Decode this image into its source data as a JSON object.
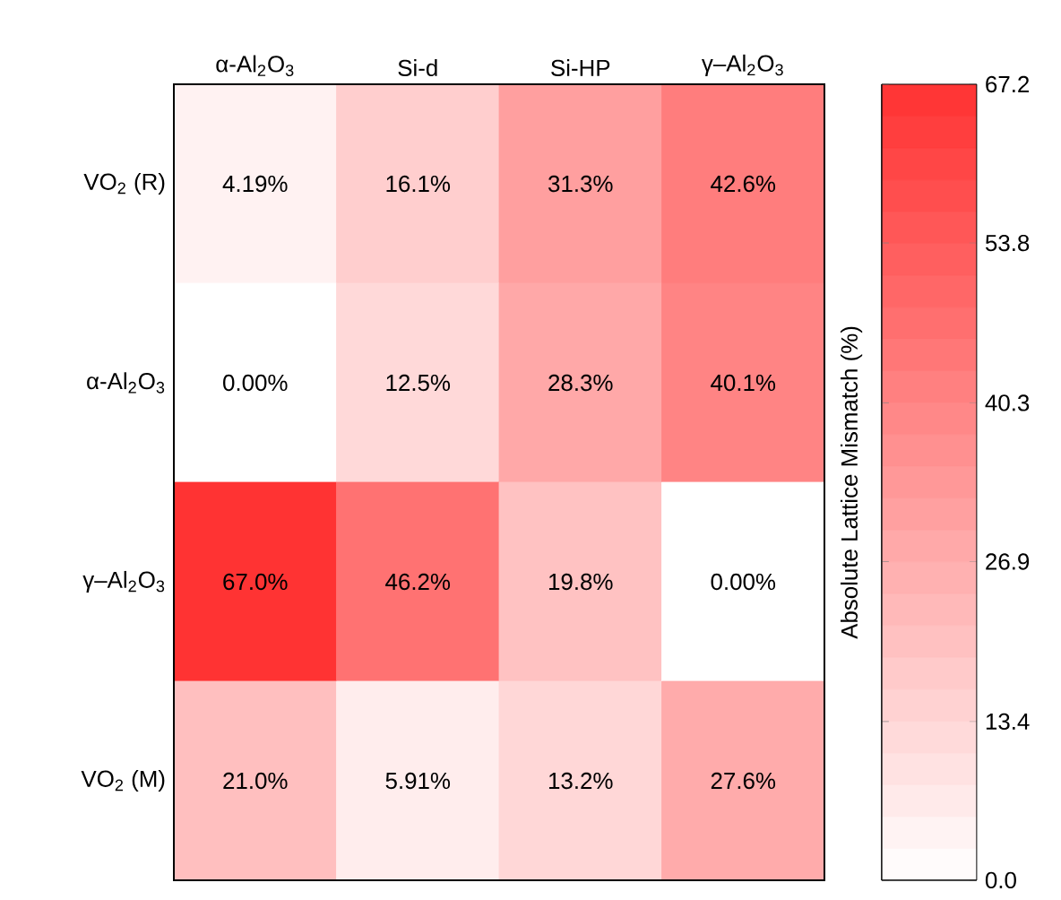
{
  "chart_data": {
    "type": "heatmap",
    "categories": [
      "α-Al$_{2}$O$_{3}$",
      "Si-d",
      "Si-HP",
      "γ–Al$_{2}$O$_{3}$"
    ],
    "y_categories": [
      "VO$_{2}$ (R)",
      "α-Al$_{2}$O$_{3}$",
      "γ–Al$_{2}$O$_{3}$",
      "VO$_{2}$ (M)"
    ],
    "cells": [
      [
        4.19,
        16.1,
        31.3,
        42.6
      ],
      [
        0.0,
        12.5,
        28.3,
        40.1
      ],
      [
        67.0,
        46.2,
        19.8,
        0.0
      ],
      [
        21.0,
        5.91,
        13.2,
        27.6
      ]
    ],
    "cell_labels": [
      [
        "4.19%",
        "16.1%",
        "31.3%",
        "42.6%"
      ],
      [
        "0.00%",
        "12.5%",
        "28.3%",
        "40.1%"
      ],
      [
        "67.0%",
        "46.2%",
        "19.8%",
        "0.00%"
      ],
      [
        "21.0%",
        "5.91%",
        "13.2%",
        "27.6%"
      ]
    ],
    "clim": [
      0,
      67.2
    ],
    "cticks": [
      {
        "value": 0,
        "label": "0.0"
      },
      13.4,
      26.9,
      40.3,
      53.8,
      67.2
    ],
    "clabel": "Absolute Lattice Mismatch (%)"
  }
}
